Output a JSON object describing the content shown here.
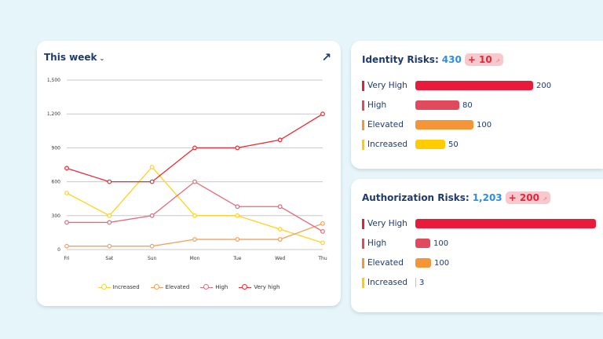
{
  "trend": {
    "title": "This week",
    "expand_icon": "arrow-up-right-icon"
  },
  "chart_data": {
    "type": "line",
    "categories": [
      "Fri",
      "Sat",
      "Sun",
      "Mon",
      "Tue",
      "Wed",
      "Thu"
    ],
    "ylim": [
      0,
      1500
    ],
    "yticks": [
      "0",
      "300",
      "600",
      "900",
      "1,200",
      "1,500"
    ],
    "ytick_values": [
      0,
      300,
      600,
      900,
      1200,
      1500
    ],
    "grid": true,
    "legend_position": "bottom",
    "series": [
      {
        "name": "Increased",
        "color": "#ffd21f",
        "values": [
          500,
          300,
          730,
          300,
          300,
          180,
          60
        ]
      },
      {
        "name": "Elevated",
        "color": "#f5a05a",
        "values": [
          30,
          30,
          30,
          90,
          90,
          90,
          230
        ]
      },
      {
        "name": "High",
        "color": "#e36a7a",
        "values": [
          240,
          240,
          300,
          600,
          380,
          380,
          160
        ]
      },
      {
        "name": "Very high",
        "color": "#f0262f",
        "values": [
          720,
          600,
          600,
          900,
          900,
          970,
          1200
        ]
      }
    ]
  },
  "identity": {
    "title": "Identity Risks:",
    "total": "430",
    "change": "+ 10",
    "rows": [
      {
        "label": "Very High",
        "value": "200",
        "color": "#e81c3a"
      },
      {
        "label": "High",
        "value": "80",
        "color": "#e04a5c"
      },
      {
        "label": "Elevated",
        "value": "100",
        "color": "#f39538"
      },
      {
        "label": "Increased",
        "value": "50",
        "color": "#ffcc00"
      }
    ]
  },
  "authorization": {
    "title": "Authorization Risks:",
    "total": "1,203",
    "change": "+ 200",
    "rows": [
      {
        "label": "Very High",
        "value": "",
        "color": "#e81c3a"
      },
      {
        "label": "High",
        "value": "100",
        "color": "#e04a5c"
      },
      {
        "label": "Elevated",
        "value": "100",
        "color": "#f39538"
      },
      {
        "label": "Increased",
        "value": "3",
        "color": "#ffcc00"
      }
    ]
  }
}
